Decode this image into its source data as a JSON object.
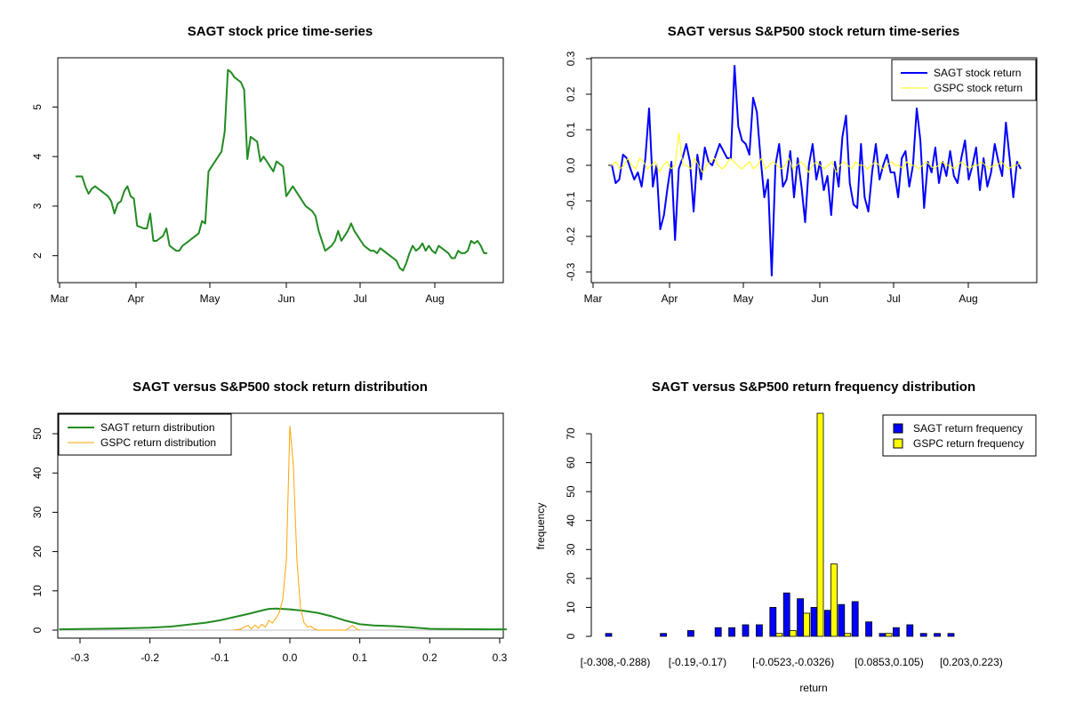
{
  "chart_data": [
    {
      "type": "line",
      "title": "SAGT stock price time-series",
      "x_ticks": [
        "Mar",
        "Apr",
        "May",
        "Jun",
        "Jul",
        "Aug"
      ],
      "y_ticks": [
        "2",
        "3",
        "4",
        "5"
      ],
      "ylim": [
        1.6,
        5.85
      ],
      "series_color": "#228b22",
      "series": [
        {
          "values": [
            3.6,
            3.6,
            3.6,
            3.4,
            3.25,
            3.35,
            3.4,
            3.35,
            3.3,
            3.25,
            3.2,
            3.1,
            2.85,
            3.05,
            3.1,
            3.3,
            3.4,
            3.2,
            3.15,
            2.6,
            2.58,
            2.55,
            2.55,
            2.85,
            2.3,
            2.3,
            2.35,
            2.4,
            2.55,
            2.2,
            2.15,
            2.1,
            2.1,
            2.2,
            2.25,
            2.3,
            2.35,
            2.4,
            2.45,
            2.7,
            2.65,
            3.7,
            3.8,
            3.9,
            4.0,
            4.1,
            4.5,
            5.75,
            5.7,
            5.6,
            5.55,
            5.5,
            5.35,
            3.95,
            4.4,
            4.35,
            4.3,
            3.9,
            4.0,
            3.9,
            3.8,
            3.7,
            3.9,
            3.85,
            3.8,
            3.2,
            3.3,
            3.4,
            3.3,
            3.2,
            3.1,
            3.0,
            2.95,
            2.9,
            2.8,
            2.5,
            2.3,
            2.1,
            2.15,
            2.2,
            2.3,
            2.5,
            2.3,
            2.4,
            2.5,
            2.65,
            2.5,
            2.4,
            2.3,
            2.2,
            2.15,
            2.1,
            2.1,
            2.05,
            2.15,
            2.1,
            2.05,
            2.0,
            1.95,
            1.9,
            1.75,
            1.7,
            1.85,
            2.05,
            2.2,
            2.1,
            2.15,
            2.25,
            2.1,
            2.2,
            2.1,
            2.05,
            2.2,
            2.15,
            2.1,
            2.05,
            1.95,
            1.95,
            2.1,
            2.05,
            2.05,
            2.1,
            2.3,
            2.25,
            2.3,
            2.2,
            2.05,
            2.05
          ]
        }
      ]
    },
    {
      "type": "line",
      "title": "SAGT versus S&P500 stock return time-series",
      "x_ticks": [
        "Mar",
        "Apr",
        "May",
        "Jun",
        "Jul",
        "Aug"
      ],
      "y_ticks": [
        "-0.3",
        "-0.2",
        "-0.1",
        "0.0",
        "0.1",
        "0.2",
        "0.3"
      ],
      "ylim": [
        -0.3,
        0.3
      ],
      "legend": [
        {
          "label": "SAGT stock return",
          "color": "#0000ff"
        },
        {
          "label": "GSPC stock return",
          "color": "#ffff00"
        }
      ],
      "series": [
        {
          "name": "SAGT stock return",
          "color": "#0000ff",
          "values": [
            0.0,
            0.0,
            -0.05,
            -0.04,
            0.03,
            0.02,
            -0.01,
            -0.04,
            -0.02,
            -0.06,
            0.02,
            0.16,
            -0.06,
            0.0,
            -0.18,
            -0.14,
            -0.06,
            0.01,
            -0.21,
            -0.01,
            0.02,
            0.06,
            0.01,
            -0.13,
            0.03,
            -0.04,
            0.05,
            0.01,
            0.0,
            0.03,
            0.06,
            0.04,
            0.02,
            0.02,
            0.28,
            0.11,
            0.07,
            0.06,
            0.03,
            0.19,
            0.15,
            0.02,
            -0.09,
            -0.04,
            -0.31,
            0.0,
            0.06,
            -0.06,
            -0.04,
            0.04,
            -0.09,
            0.02,
            -0.06,
            -0.16,
            0.0,
            0.06,
            -0.04,
            0.01,
            -0.07,
            -0.03,
            -0.14,
            0.01,
            -0.06,
            0.08,
            0.14,
            -0.05,
            -0.11,
            -0.12,
            0.06,
            -0.09,
            -0.13,
            -0.02,
            0.06,
            -0.04,
            0.0,
            0.03,
            -0.02,
            -0.02,
            -0.09,
            0.02,
            0.04,
            -0.06,
            0.0,
            0.16,
            0.07,
            -0.12,
            0.01,
            -0.02,
            0.05,
            -0.05,
            0.01,
            -0.03,
            0.04,
            -0.03,
            -0.05,
            0.02,
            0.07,
            -0.04,
            0.0,
            0.05,
            -0.07,
            0.02,
            -0.06,
            -0.02,
            0.06,
            0.01,
            -0.03,
            0.12,
            0.02,
            -0.09,
            0.01,
            -0.01
          ]
        },
        {
          "name": "GSPC stock return",
          "color": "#ffff00",
          "values": [
            0.0,
            0.0,
            0.01,
            -0.01,
            0.0,
            0.02,
            0.0,
            -0.01,
            0.02,
            0.01,
            -0.01,
            0.0,
            0.01,
            -0.02,
            0.0,
            0.01,
            -0.01,
            0.0,
            0.09,
            0.0,
            0.0,
            -0.01,
            0.02,
            0.0,
            -0.02,
            0.0,
            0.01,
            0.02,
            0.0,
            -0.01,
            0.0,
            0.02,
            0.01,
            0.0,
            -0.01,
            0.0,
            0.01,
            -0.01,
            0.0,
            0.02,
            -0.01,
            0.0,
            0.01,
            0.0,
            -0.01,
            0.0,
            0.02,
            -0.01,
            0.0,
            0.01,
            0.0,
            -0.02,
            0.0,
            0.01,
            0.0,
            -0.01,
            0.0,
            0.01,
            -0.02,
            0.0,
            0.01,
            0.0,
            -0.01,
            0.01,
            0.0,
            0.0,
            -0.01,
            0.0,
            0.01,
            0.0,
            -0.01,
            0.0,
            0.01,
            0.0,
            0.0,
            -0.01,
            0.01,
            0.0,
            0.0,
            -0.01,
            0.0,
            0.01,
            0.0,
            -0.01,
            0.0,
            0.01,
            0.0,
            0.0,
            -0.01,
            0.0,
            0.01,
            0.0,
            -0.01,
            0.0,
            0.0,
            0.01,
            0.0,
            -0.01,
            0.0,
            0.0,
            0.01,
            0.0,
            -0.01,
            0.0,
            0.0,
            0.01
          ]
        }
      ]
    },
    {
      "type": "line",
      "title": "SAGT versus S&P500 stock return distribution",
      "x_ticks": [
        "-0.3",
        "-0.2",
        "-0.1",
        "0.0",
        "0.1",
        "0.2",
        "0.3"
      ],
      "y_ticks": [
        "0",
        "10",
        "20",
        "30",
        "40",
        "50"
      ],
      "xlim": [
        -0.33,
        0.31
      ],
      "ylim": [
        -2,
        54
      ],
      "legend": [
        {
          "label": "SAGT return distribution",
          "color": "#228b22"
        },
        {
          "label": "GSPC return distribution",
          "color": "#ffa500"
        }
      ],
      "series": [
        {
          "name": "SAGT return distribution",
          "color": "#228b22",
          "x": [
            -0.33,
            -0.3,
            -0.25,
            -0.2,
            -0.17,
            -0.15,
            -0.12,
            -0.1,
            -0.08,
            -0.06,
            -0.04,
            -0.03,
            -0.02,
            0.0,
            0.02,
            0.04,
            0.06,
            0.08,
            0.1,
            0.12,
            0.15,
            0.18,
            0.2,
            0.22,
            0.25,
            0.28,
            0.31
          ],
          "values": [
            0.2,
            0.3,
            0.4,
            0.6,
            0.9,
            1.3,
            1.9,
            2.5,
            3.3,
            4.1,
            5.0,
            5.4,
            5.5,
            5.3,
            4.9,
            4.4,
            3.5,
            2.4,
            1.5,
            1.2,
            1.0,
            0.6,
            0.35,
            0.3,
            0.25,
            0.2,
            0.2
          ]
        },
        {
          "name": "GSPC return distribution",
          "color": "#ffa500",
          "x": [
            -0.08,
            -0.07,
            -0.06,
            -0.055,
            -0.05,
            -0.045,
            -0.04,
            -0.035,
            -0.03,
            -0.025,
            -0.02,
            -0.015,
            -0.01,
            -0.005,
            0.0,
            0.005,
            0.01,
            0.015,
            0.02,
            0.025,
            0.03,
            0.035,
            0.04,
            0.05,
            0.06,
            0.08,
            0.09,
            0.095,
            0.1
          ],
          "values": [
            0.0,
            0.3,
            1.2,
            0.3,
            1.3,
            0.5,
            1.5,
            0.8,
            2.5,
            1.8,
            3.0,
            4.5,
            8.0,
            18.0,
            52.0,
            42.0,
            18.0,
            6.0,
            2.0,
            0.8,
            1.0,
            0.3,
            0.0,
            0.0,
            0.0,
            0.0,
            1.2,
            0.3,
            0.0
          ]
        }
      ]
    },
    {
      "type": "bar",
      "title": "SAGT versus S&P500 return frequency distribution",
      "xlabel": "return",
      "ylabel": "frequency",
      "x_tick_labels": [
        "[-0.308,-0.288)",
        "[-0.19,-0.17)",
        "[-0.0523,-0.0326)",
        "[0.0853,0.105)",
        "[0.203,0.223)"
      ],
      "x_tick_bins": [
        0,
        6,
        13,
        20,
        26
      ],
      "y_ticks": [
        "0",
        "10",
        "20",
        "30",
        "40",
        "50",
        "60",
        "70"
      ],
      "ylim": [
        0,
        78
      ],
      "legend": [
        {
          "label": "SAGT return frequency",
          "color": "#0000ff"
        },
        {
          "label": "GSPC return frequency",
          "color": "#ffff00"
        }
      ],
      "series": [
        {
          "name": "SAGT return frequency",
          "color": "#0000ff",
          "values": [
            1,
            0,
            0,
            0,
            1,
            0,
            2,
            0,
            3,
            3,
            4,
            4,
            10,
            15,
            13,
            10,
            9,
            11,
            12,
            5,
            1,
            3,
            4,
            1,
            1,
            1,
            0,
            0,
            0,
            0,
            0
          ]
        },
        {
          "name": "GSPC return frequency",
          "color": "#ffff00",
          "values": [
            0,
            0,
            0,
            0,
            0,
            0,
            0,
            0,
            0,
            0,
            0,
            0,
            1,
            2,
            8,
            78,
            25,
            1,
            0,
            0,
            1,
            0,
            0,
            0,
            0,
            0,
            0,
            0,
            0,
            0,
            0
          ]
        }
      ]
    }
  ]
}
